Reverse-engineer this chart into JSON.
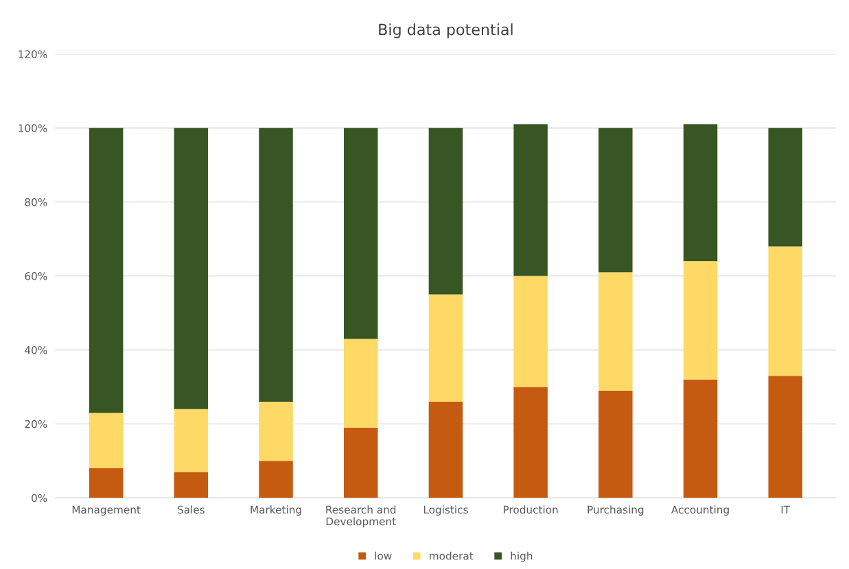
{
  "chart_data": {
    "type": "bar",
    "title": "Big data potential",
    "stacked": true,
    "grid": "y",
    "legend": "bottom",
    "categories": [
      "Management",
      "Sales",
      "Marketing",
      "Research and\nDevelopment",
      "Logistics",
      "Production",
      "Purchasing",
      "Accounting",
      "IT"
    ],
    "series": [
      {
        "name": "low",
        "color": "#c55a11",
        "values": [
          8,
          7,
          10,
          19,
          26,
          30,
          29,
          32,
          33
        ]
      },
      {
        "name": "moderat",
        "color": "#ffd966",
        "values": [
          15,
          17,
          16,
          24,
          29,
          30,
          32,
          32,
          35
        ]
      },
      {
        "name": "high",
        "color": "#375623",
        "values": [
          77,
          76,
          74,
          57,
          45,
          41,
          39,
          37,
          32
        ]
      }
    ],
    "ylim": [
      0,
      120
    ],
    "yticks": [
      {
        "value": 0,
        "label": "0%"
      },
      {
        "value": 20,
        "label": "20%"
      },
      {
        "value": 40,
        "label": "40%"
      },
      {
        "value": 60,
        "label": "60%"
      },
      {
        "value": 80,
        "label": "80%"
      },
      {
        "value": 100,
        "label": "100%"
      },
      {
        "value": 120,
        "label": "120%"
      }
    ]
  }
}
